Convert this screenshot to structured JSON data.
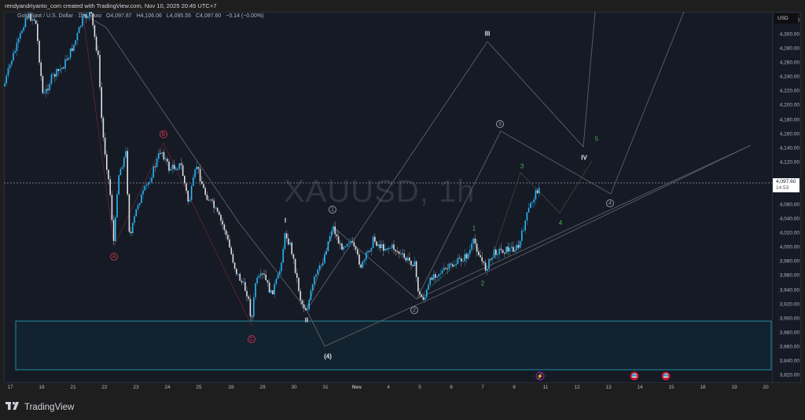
{
  "header": {
    "credit": "rendyandriyanto_com created with TradingView.com, Nov 10, 2025 20:45 UTC+7"
  },
  "legend": {
    "symbol_desc": "Gold Spot / U.S. Dollar · 1h · Saxo",
    "open": "O4,097.87",
    "high": "H4,106.06",
    "low": "L4,095.55",
    "close": "C4,097.60",
    "change": "−0.14 (−0.00%)"
  },
  "watermark": "XAUUSD, 1h",
  "price_axis": {
    "currency": "USD",
    "ticks": [
      "4,320.00",
      "4,300.00",
      "4,280.00",
      "4,260.00",
      "4,240.00",
      "4,220.00",
      "4,200.00",
      "4,180.00",
      "4,160.00",
      "4,140.00",
      "4,120.00",
      "4,080.00",
      "4,060.00",
      "4,040.00",
      "4,020.00",
      "4,000.00",
      "3,980.00",
      "3,960.00",
      "3,940.00",
      "3,920.00",
      "3,900.00",
      "3,880.00",
      "3,860.00",
      "3,840.00",
      "3,820.00"
    ],
    "current_price": "4,097.60",
    "countdown": "14:53"
  },
  "time_axis": {
    "labels": [
      "17",
      "18",
      "21",
      "22",
      "23",
      "24",
      "25",
      "28",
      "29",
      "30",
      "31",
      "Nov",
      "4",
      "5",
      "6",
      "7",
      "8",
      "11",
      "12",
      "13",
      "14",
      "15",
      "18",
      "19",
      "20"
    ]
  },
  "wave_labels": {
    "A": "A",
    "B": "B",
    "C": "C",
    "I": "I",
    "II": "II",
    "III": "III",
    "IV": "IV",
    "c1": "1",
    "c2": "2",
    "c3": "3",
    "c4": "4",
    "p4": "(4)",
    "g1": "1",
    "g2": "2",
    "g3": "3",
    "g4": "4",
    "g5": "5"
  },
  "events": [
    {
      "type": "dividend-earnings-icon",
      "glyph": "⚡"
    },
    {
      "type": "us-flag-icon",
      "glyph": ""
    },
    {
      "type": "us-flag-icon",
      "glyph": ""
    }
  ],
  "brand": {
    "logo": "TV",
    "name": "TradingView"
  },
  "colors": {
    "background": "#161a25",
    "candle_up": "#29b6f6",
    "candle_down": "#e0e0e0",
    "wave_red": "#c2334a",
    "wave_green": "#4caf50",
    "wave_gray": "#9598a1",
    "zone_border": "#1e8fa0",
    "zone_fill": "#13222f"
  },
  "chart_data": {
    "type": "candlestick",
    "title": "XAUUSD, 1h",
    "symbol": "Gold Spot / U.S. Dollar",
    "interval": "1h",
    "ohlc_last": {
      "open": 4097.87,
      "high": 4106.06,
      "low": 4095.55,
      "close": 4097.6,
      "change": -0.14,
      "change_pct": -0.0
    },
    "ylim": [
      3820,
      4320
    ],
    "y_ticks": [
      3820,
      3840,
      3860,
      3880,
      3900,
      3920,
      3940,
      3960,
      3980,
      4000,
      4020,
      4040,
      4060,
      4080,
      4100,
      4120,
      4140,
      4160,
      4180,
      4200,
      4220,
      4240,
      4260,
      4280,
      4300,
      4320
    ],
    "x_ticks": [
      "17",
      "18",
      "21",
      "22",
      "23",
      "24",
      "25",
      "28",
      "29",
      "30",
      "31",
      "Nov",
      "4",
      "5",
      "6",
      "7",
      "8",
      "11",
      "12",
      "13",
      "14",
      "15",
      "18",
      "19",
      "20"
    ],
    "approx_price_path": [
      {
        "date": "Oct 17",
        "price": 4300
      },
      {
        "date": "Oct 21",
        "price": 4330
      },
      {
        "date": "Oct 22 (A)",
        "price": 4010
      },
      {
        "date": "Oct 23",
        "price": 4150
      },
      {
        "date": "Oct 24 (B)",
        "price": 4150
      },
      {
        "date": "Oct 27",
        "price": 4000
      },
      {
        "date": "Oct 28 (C)",
        "price": 3890
      },
      {
        "date": "Oct 29 (I)",
        "price": 4030
      },
      {
        "date": "Oct 30 (II)",
        "price": 3915
      },
      {
        "date": "Oct 31 (1)",
        "price": 4045
      },
      {
        "date": "Nov 4 (2)",
        "price": 3930
      },
      {
        "date": "Nov 6 (g1)",
        "price": 4020
      },
      {
        "date": "Nov 7 (g2)",
        "price": 3975
      },
      {
        "date": "Nov 10",
        "price": 4097.6
      }
    ],
    "support_zone": {
      "from": 3830,
      "to": 3900
    },
    "annotations": [
      "Elliott wave count: A-B-C correction, I-II-III-IV impulse projection, circled 1-2-3-4, green 1-2-3-4-5 subwaves, (4)"
    ],
    "current_price_line": 4097.6
  }
}
